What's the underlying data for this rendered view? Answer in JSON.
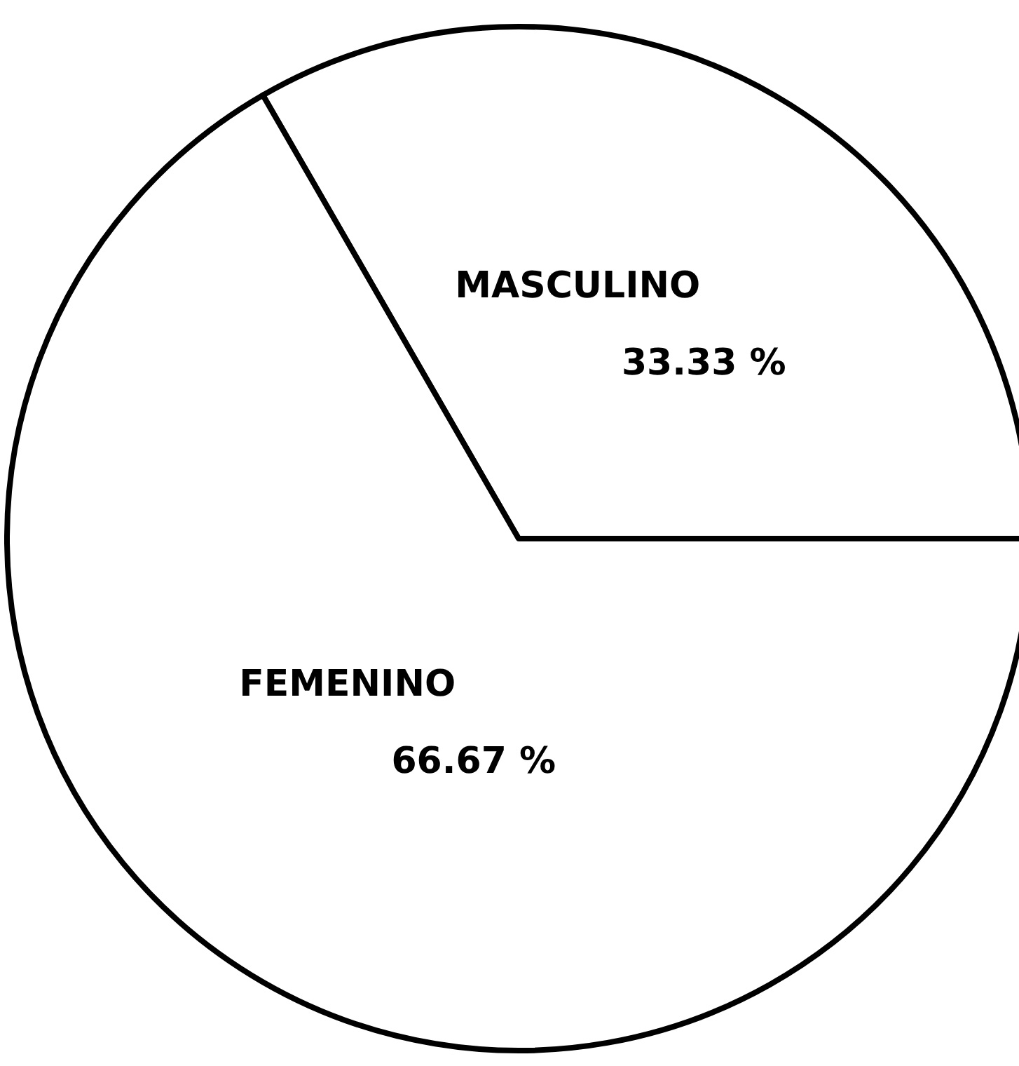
{
  "chart_data": {
    "type": "pie",
    "categories": [
      "MASCULINO",
      "FEMENINO"
    ],
    "values": [
      33.33,
      66.67
    ],
    "colors": [
      "#ffffff",
      "#ffffff"
    ],
    "value_labels": [
      "33.33 %",
      "66.67 %"
    ]
  }
}
